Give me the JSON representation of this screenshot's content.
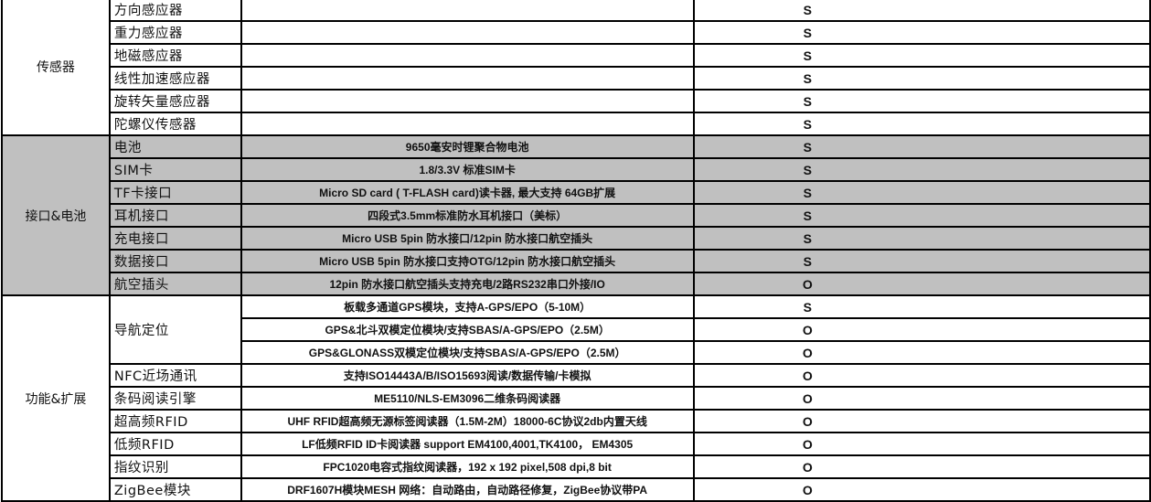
{
  "groups": [
    {
      "category": "传感器",
      "shaded": false,
      "rows": [
        {
          "item": "方向感应器",
          "desc": "",
          "value": "S"
        },
        {
          "item": "重力感应器",
          "desc": "",
          "value": "S"
        },
        {
          "item": "地磁感应器",
          "desc": "",
          "value": "S"
        },
        {
          "item": "线性加速感应器",
          "desc": "",
          "value": "S"
        },
        {
          "item": "旋转矢量感应器",
          "desc": "",
          "value": "S"
        },
        {
          "item": "陀螺仪传感器",
          "desc": "",
          "value": "S"
        }
      ]
    },
    {
      "category": "接口&电池",
      "shaded": true,
      "rows": [
        {
          "item": "电池",
          "desc": "9650毫安时锂聚合物电池",
          "value": "S"
        },
        {
          "item": "SIM卡",
          "desc": "1.8/3.3V 标准SIM卡",
          "value": "S"
        },
        {
          "item": "TF卡接口",
          "desc": "Micro SD card ( T-FLASH card)读卡器, 最大支持 64GB扩展",
          "value": "S"
        },
        {
          "item": "耳机接口",
          "desc": "四段式3.5mm标准防水耳机接口（美标）",
          "value": "S"
        },
        {
          "item": "充电接口",
          "desc": "Micro USB 5pin 防水接口/12pin 防水接口航空插头",
          "value": "S"
        },
        {
          "item": "数据接口",
          "desc": "Micro USB 5pin 防水接口支持OTG/12pin 防水接口航空插头",
          "value": "S"
        },
        {
          "item": "航空插头",
          "desc": "12pin 防水接口航空插头支持充电/2路RS232串口外接/IO",
          "value": "O"
        }
      ]
    },
    {
      "category": "功能&扩展",
      "shaded": false,
      "nav": {
        "item": "导航定位",
        "rows": [
          {
            "desc": "板载多通道GPS模块，支持A-GPS/EPO（5-10M）",
            "value": "S"
          },
          {
            "desc": "GPS&北斗双模定位模块/支持SBAS/A-GPS/EPO（2.5M）",
            "value": "O"
          },
          {
            "desc": "GPS&GLONASS双模定位模块/支持SBAS/A-GPS/EPO（2.5M）",
            "value": "O"
          }
        ]
      },
      "rows": [
        {
          "item": "NFC近场通讯",
          "desc": "支持ISO14443A/B/ISO15693阅读/数据传输/卡模拟",
          "value": "O"
        },
        {
          "item": "条码阅读引擎",
          "desc": "ME5110/NLS-EM3096二维条码阅读器",
          "value": "O"
        },
        {
          "item": "超高频RFID",
          "desc": "UHF RFID超高频无源标签阅读器（1.5M-2M）18000-6C协议2db内置天线",
          "value": "O"
        },
        {
          "item": "低频RFID",
          "desc": "LF低频RFID ID卡阅读器 support EM4100,4001,TK4100， EM4305",
          "value": "O"
        },
        {
          "item": "指纹识别",
          "desc": "FPC1020电容式指纹阅读器，192 x 192 pixel,508 dpi,8 bit",
          "value": "O"
        },
        {
          "item": "ZigBee模块",
          "desc": "DRF1607H模块MESH 网络：自动路由，自动路径修复，ZigBee协议带PA",
          "value": "O"
        }
      ]
    }
  ]
}
